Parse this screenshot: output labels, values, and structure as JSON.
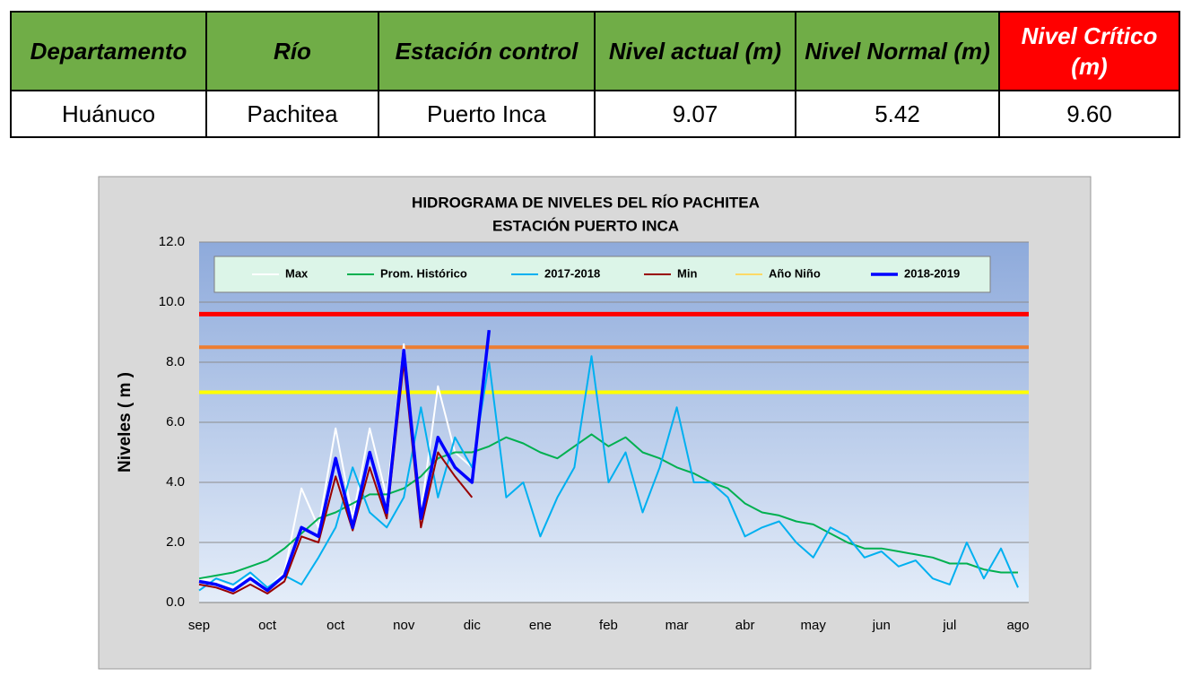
{
  "table": {
    "header": [
      "Departamento",
      "Río",
      "Estación control",
      "Nivel actual (m)",
      "Nivel Normal (m)",
      "Nivel Crítico (m)"
    ],
    "rows": [
      [
        "Huánuco",
        "Pachitea",
        "Puerto Inca",
        "9.07",
        "5.42",
        "9.60"
      ]
    ]
  },
  "chart_data": {
    "type": "line",
    "title": "HIDROGRAMA DE NIVELES DEL RÍO PACHITEA",
    "subtitle": "ESTACIÓN PUERTO INCA",
    "y_label": "Niveles ( m )",
    "categories": [
      "sep",
      null,
      null,
      null,
      "oct",
      null,
      null,
      null,
      "oct",
      null,
      null,
      null,
      "nov",
      null,
      null,
      null,
      "dic",
      null,
      null,
      null,
      "ene",
      null,
      null,
      null,
      "feb",
      null,
      null,
      null,
      "mar",
      null,
      null,
      null,
      "abr",
      null,
      null,
      null,
      "may",
      null,
      null,
      null,
      "jun",
      null,
      null,
      null,
      "jul",
      null,
      null,
      null,
      "ago"
    ],
    "ylim": [
      0,
      12
    ],
    "yticks": [
      {
        "value": 0,
        "label": "0.0"
      },
      {
        "value": 2,
        "label": "2.0"
      },
      {
        "value": 4,
        "label": "4.0"
      },
      {
        "value": 6,
        "label": "6.0"
      },
      {
        "value": 8,
        "label": "8.0"
      },
      {
        "value": 10,
        "label": "10.0"
      },
      {
        "value": 12,
        "label": "12.0"
      }
    ],
    "grid": true,
    "legend": "top",
    "reference_lines": [
      {
        "value": 9.6,
        "color": "#ff0000"
      },
      {
        "value": 8.5,
        "color": "#ed7d31"
      },
      {
        "value": 7.0,
        "color": "#ffff00"
      }
    ],
    "series": [
      {
        "name": "Max",
        "color": "#ffffff",
        "values": [
          0.8,
          0.7,
          0.5,
          0.9,
          0.5,
          1.0,
          3.8,
          2.5,
          5.8,
          2.8,
          5.8,
          3.5,
          8.6,
          3.0,
          7.2,
          5.0,
          4.5,
          null,
          null,
          null,
          null,
          null,
          null,
          null,
          null,
          null,
          null,
          null,
          null,
          null,
          null,
          null,
          null,
          null,
          null,
          null,
          null,
          null,
          null,
          null,
          null,
          null,
          null,
          null,
          null,
          null,
          null,
          null,
          null
        ]
      },
      {
        "name": "Prom. Histórico",
        "color": "#00b050",
        "values": [
          0.8,
          0.9,
          1.0,
          1.2,
          1.4,
          1.8,
          2.3,
          2.8,
          3.0,
          3.3,
          3.6,
          3.6,
          3.8,
          4.2,
          4.8,
          5.0,
          5.0,
          5.2,
          5.5,
          5.3,
          5.0,
          4.8,
          5.2,
          5.6,
          5.2,
          5.5,
          5.0,
          4.8,
          4.5,
          4.3,
          4.0,
          3.8,
          3.3,
          3.0,
          2.9,
          2.7,
          2.6,
          2.3,
          2.0,
          1.8,
          1.8,
          1.7,
          1.6,
          1.5,
          1.3,
          1.3,
          1.1,
          1.0,
          1.0
        ]
      },
      {
        "name": "2017-2018",
        "color": "#00b0f0",
        "values": [
          0.4,
          0.8,
          0.6,
          1.0,
          0.5,
          0.9,
          0.6,
          1.5,
          2.5,
          4.5,
          3.0,
          2.5,
          3.5,
          6.5,
          3.5,
          5.5,
          4.5,
          8.0,
          3.5,
          4.0,
          2.2,
          3.5,
          4.5,
          8.2,
          4.0,
          5.0,
          3.0,
          4.5,
          6.5,
          4.0,
          4.0,
          3.5,
          2.2,
          2.5,
          2.7,
          2.0,
          1.5,
          2.5,
          2.2,
          1.5,
          1.7,
          1.2,
          1.4,
          0.8,
          0.6,
          2.0,
          0.8,
          1.8,
          0.5
        ]
      },
      {
        "name": "Min",
        "color": "#990000",
        "values": [
          0.6,
          0.5,
          0.3,
          0.6,
          0.3,
          0.7,
          2.2,
          2.0,
          4.2,
          2.4,
          4.5,
          2.8,
          8.0,
          2.5,
          5.0,
          4.2,
          3.5,
          null,
          null,
          null,
          null,
          null,
          null,
          null,
          null,
          null,
          null,
          null,
          null,
          null,
          null,
          null,
          null,
          null,
          null,
          null,
          null,
          null,
          null,
          null,
          null,
          null,
          null,
          null,
          null,
          null,
          null,
          null,
          null
        ]
      },
      {
        "name": "Año Niño",
        "color": "#ffd966",
        "values": [
          null,
          null,
          null,
          null,
          null,
          null,
          null,
          null,
          null,
          null,
          null,
          null,
          null,
          null,
          null,
          null,
          null,
          null,
          null,
          null,
          null,
          null,
          null,
          null,
          null,
          null,
          null,
          null,
          null,
          null,
          null,
          null,
          null,
          null,
          null,
          null,
          null,
          null,
          null,
          null,
          null,
          null,
          null,
          null,
          null,
          null,
          null,
          null,
          null
        ]
      },
      {
        "name": "2018-2019",
        "color": "#0000ff",
        "values": [
          0.7,
          0.6,
          0.4,
          0.8,
          0.4,
          0.9,
          2.5,
          2.2,
          4.8,
          2.5,
          5.0,
          3.0,
          8.4,
          2.8,
          5.5,
          4.5,
          4.0,
          9.07,
          null,
          null,
          null,
          null,
          null,
          null,
          null,
          null,
          null,
          null,
          null,
          null,
          null,
          null,
          null,
          null,
          null,
          null,
          null,
          null,
          null,
          null,
          null,
          null,
          null,
          null,
          null,
          null,
          null,
          null,
          null
        ]
      }
    ]
  }
}
